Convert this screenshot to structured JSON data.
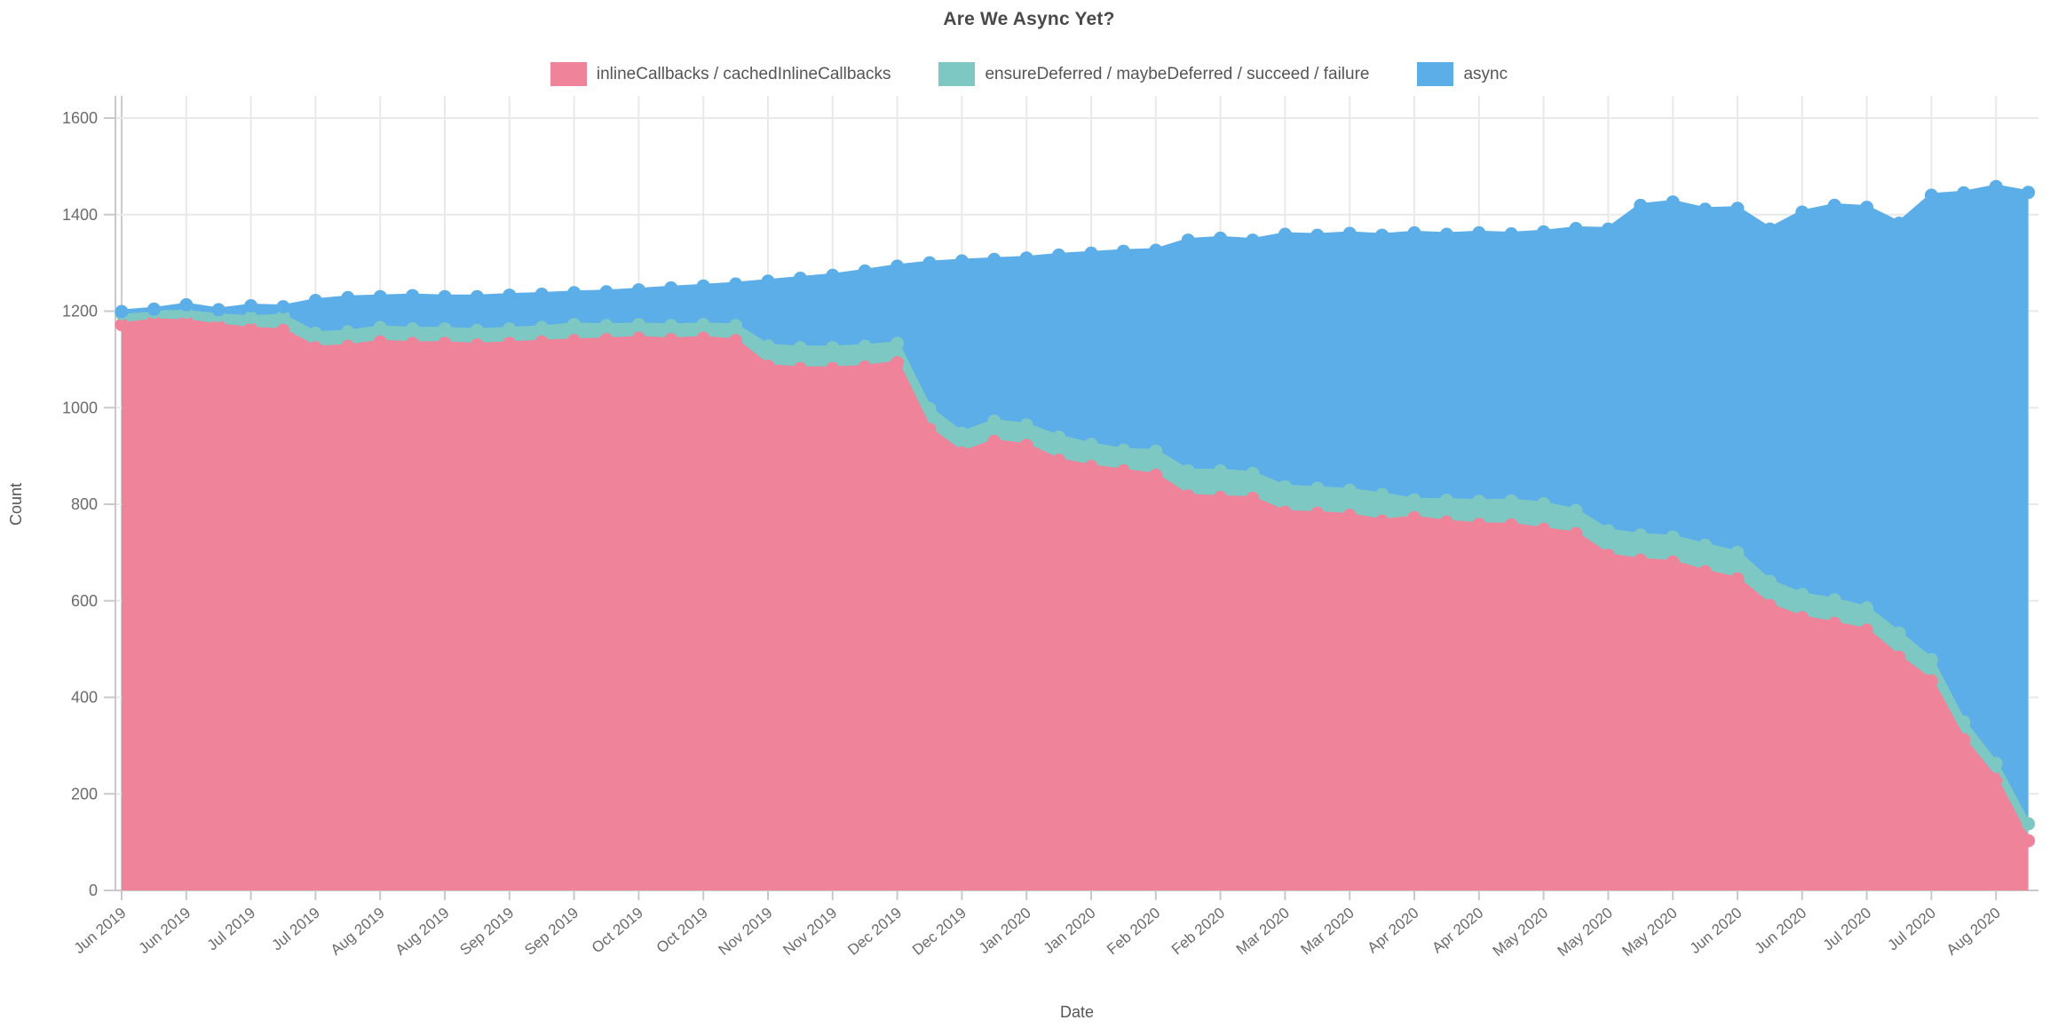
{
  "title": "Are We Async Yet?",
  "colors": {
    "inline_callbacks": "#EF8399",
    "ensure_deferred": "#7EC8C3",
    "async": "#5BAEE7",
    "grid_line": "#e9e9e9",
    "axis_line": "#c9c9c9",
    "first_grid_line": "#cccccc",
    "tick_text": "#6b6b6b",
    "axis_title_text": "#555555",
    "title_text": "#4a4a4a"
  },
  "legend": {
    "items": [
      {
        "label": "inlineCallbacks / cachedInlineCallbacks",
        "color": "#EF8399"
      },
      {
        "label": "ensureDeferred / maybeDeferred / succeed / failure",
        "color": "#7EC8C3"
      },
      {
        "label": "async",
        "color": "#5BAEE7"
      }
    ]
  },
  "axes": {
    "x": {
      "title": "Date",
      "tick_labels": [
        "Jun 2019",
        "Jun 2019",
        "Jul 2019",
        "Jul 2019",
        "Aug 2019",
        "Aug 2019",
        "Sep 2019",
        "Sep 2019",
        "Oct 2019",
        "Oct 2019",
        "Nov 2019",
        "Nov 2019",
        "Dec 2019",
        "Dec 2019",
        "Jan 2020",
        "Jan 2020",
        "Feb 2020",
        "Feb 2020",
        "Mar 2020",
        "Mar 2020",
        "Apr 2020",
        "Apr 2020",
        "May 2020",
        "May 2020",
        "May 2020",
        "Jun 2020",
        "Jun 2020",
        "Jul 2020",
        "Jul 2020",
        "Aug 2020"
      ]
    },
    "y": {
      "title": "Count",
      "tick_labels": [
        "0",
        "200",
        "400",
        "600",
        "800",
        "1000",
        "1200",
        "1400",
        "1600"
      ],
      "min": 0,
      "max": 1600
    }
  },
  "chart_data": {
    "type": "area",
    "stacked": true,
    "title": "Are We Async Yet?",
    "xlabel": "Date",
    "ylabel": "Count",
    "ylim": [
      0,
      1600
    ],
    "grid": true,
    "legend_position": "top",
    "points_per_tick": 2,
    "x_tick_labels": [
      "Jun 2019",
      "Jun 2019",
      "Jul 2019",
      "Jul 2019",
      "Aug 2019",
      "Aug 2019",
      "Sep 2019",
      "Sep 2019",
      "Oct 2019",
      "Oct 2019",
      "Nov 2019",
      "Nov 2019",
      "Dec 2019",
      "Dec 2019",
      "Jan 2020",
      "Jan 2020",
      "Feb 2020",
      "Feb 2020",
      "Mar 2020",
      "Mar 2020",
      "Apr 2020",
      "Apr 2020",
      "May 2020",
      "May 2020",
      "May 2020",
      "Jun 2020",
      "Jun 2020",
      "Jul 2020",
      "Jul 2020",
      "Aug 2020"
    ],
    "series": [
      {
        "name": "inlineCallbacks / cachedInlineCallbacks",
        "color": "#EF8399",
        "values": [
          1172,
          1180,
          1179,
          1170,
          1163,
          1160,
          1124,
          1127,
          1136,
          1133,
          1133,
          1130,
          1133,
          1136,
          1139,
          1141,
          1144,
          1141,
          1144,
          1139,
          1086,
          1081,
          1081,
          1084,
          1093,
          955,
          906,
          930,
          922,
          891,
          878,
          869,
          860,
          817,
          814,
          812,
          783,
          781,
          777,
          765,
          772,
          763,
          758,
          757,
          748,
          739,
          694,
          684,
          680,
          660,
          645,
          590,
          565,
          553,
          539,
          483,
          434,
          312,
          230,
          103
        ]
      },
      {
        "name": "ensureDeferred / maybeDeferred / succeed / failure",
        "color": "#7EC8C3",
        "values": [
          23,
          18,
          19,
          21,
          24,
          30,
          30,
          30,
          30,
          30,
          30,
          30,
          30,
          30,
          33,
          29,
          28,
          29,
          28,
          31,
          42,
          43,
          43,
          43,
          40,
          43,
          41,
          42,
          42,
          48,
          46,
          43,
          50,
          52,
          55,
          52,
          53,
          52,
          52,
          55,
          37,
          45,
          48,
          50,
          53,
          48,
          51,
          52,
          52,
          55,
          55,
          50,
          48,
          49,
          46,
          50,
          44,
          37,
          33,
          35
        ]
      },
      {
        "name": "async",
        "color": "#5BAEE7",
        "values": [
          4,
          6,
          15,
          12,
          24,
          19,
          68,
          71,
          64,
          69,
          67,
          70,
          70,
          69,
          66,
          70,
          72,
          78,
          80,
          86,
          134,
          144,
          150,
          156,
          160,
          302,
          357,
          335,
          346,
          377,
          396,
          412,
          416,
          478,
          482,
          483,
          523,
          524,
          532,
          537,
          553,
          551,
          556,
          553,
          563,
          584,
          625,
          683,
          694,
          696,
          713,
          730,
          792,
          817,
          830,
          849,
          962,
          1096,
          1195,
          1308
        ]
      }
    ]
  }
}
